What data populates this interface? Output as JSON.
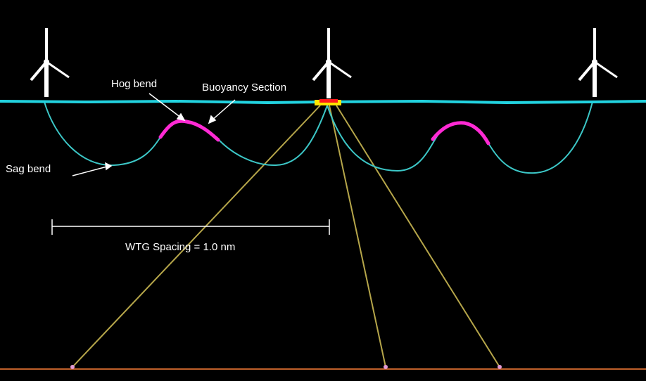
{
  "labels": {
    "hog_bend": "Hog bend",
    "buoyancy_section": "Buoyancy Section",
    "sag_bend": "Sag bend",
    "spacing": "WTG Spacing = 1.0 nm"
  },
  "colors": {
    "background": "#000000",
    "sea_surface": "#22d3e0",
    "cable": "#3cc7c7",
    "buoyancy": "#ff2ad4",
    "mooring": "#b6a64a",
    "seabed": "#c0602a",
    "turbine": "#ffffff",
    "platform_red": "#ff1a1a",
    "platform_yellow": "#ffe600",
    "annotation": "#ffffff"
  },
  "icons": [
    "wind-turbine-icon",
    "floating-platform-icon"
  ]
}
